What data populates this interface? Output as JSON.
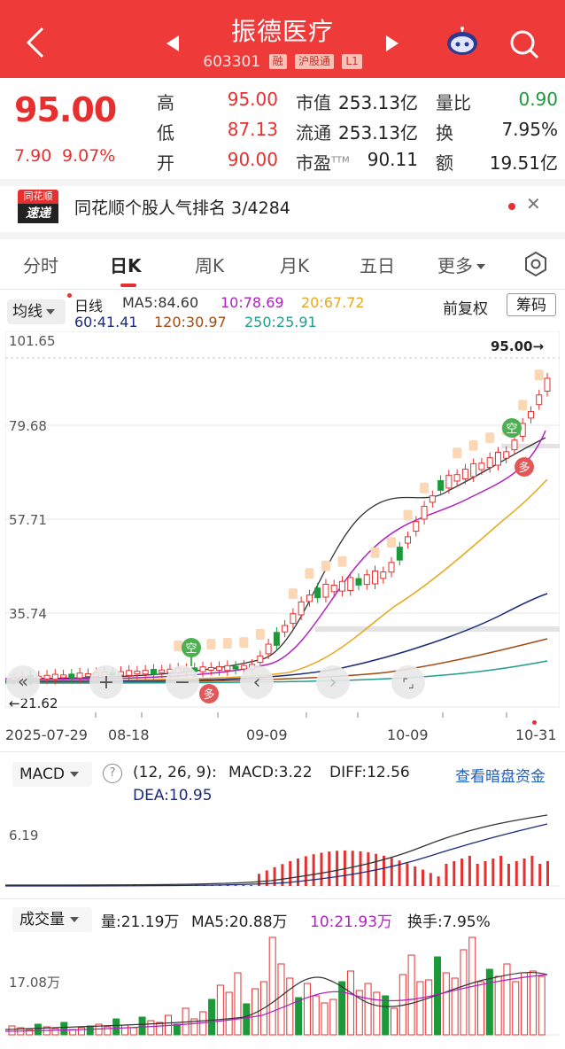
{
  "header": {
    "title": "振德医疗",
    "code": "603301",
    "tags": [
      "融",
      "沪股通",
      "L1"
    ]
  },
  "quote": {
    "price": "95.00",
    "change": "7.90",
    "change_pct": "9.07%",
    "high_label": "高",
    "high": "95.00",
    "low_label": "低",
    "low": "87.13",
    "open_label": "开",
    "open": "90.00",
    "mcap_label": "市值",
    "mcap": "253.13亿",
    "float_label": "流通",
    "float": "253.13亿",
    "pe_label": "市盈",
    "pe_sup": "TTM",
    "pe": "90.11",
    "vol_ratio_label": "量比",
    "vol_ratio": "0.90",
    "turnover_label": "换",
    "turnover": "7.95%",
    "amount_label": "额",
    "amount": "19.51亿"
  },
  "popularity": {
    "logo_top": "同花顺",
    "logo_bottom": "速递",
    "text": "同花顺个股人气排名 3/4284"
  },
  "tabs": [
    "分时",
    "日K",
    "周K",
    "月K",
    "五日",
    "更多"
  ],
  "ma": {
    "select": "均线",
    "label": "日线",
    "ma5": "MA5:84.60",
    "ma10": "10:78.69",
    "ma20": "20:67.72",
    "ma60": "60:41.41",
    "ma120": "120:30.97",
    "ma250": "250:25.91",
    "adj": "前复权",
    "chips": "筹码",
    "colors": {
      "ma5": "#333333",
      "ma10": "#b21fc2",
      "ma20": "#e8a81c",
      "ma60": "#1b2a7a",
      "ma120": "#a34a12",
      "ma250": "#1f9e8c"
    }
  },
  "kline": {
    "y_labels": [
      "101.65",
      "79.68",
      "57.71",
      "35.74"
    ],
    "price_marker": "95.00→",
    "low_marker": "←21.62",
    "x_labels": [
      "2025-07-29",
      "08-18",
      "09-09",
      "10-09",
      "10-31"
    ],
    "signals": {
      "short": "空",
      "long": "多"
    },
    "controls": [
      "«",
      "+",
      "−",
      "‹",
      "›",
      "⌜⌟"
    ]
  },
  "macd": {
    "select": "MACD",
    "params": "(12, 26, 9):",
    "macd": "MACD:3.22",
    "diff": "DIFF:12.56",
    "dea": "DEA:10.95",
    "link": "查看暗盘资金",
    "y_label": "6.19"
  },
  "volume": {
    "select": "成交量",
    "vol": "量:21.19万",
    "ma5": "MA5:20.88万",
    "ma10": "10:21.93万",
    "turnover": "换手:7.95%",
    "y_label": "17.08万"
  },
  "colors": {
    "up": "#e5302f",
    "down": "#1c9a3a",
    "header": "#ef3a3a"
  }
}
